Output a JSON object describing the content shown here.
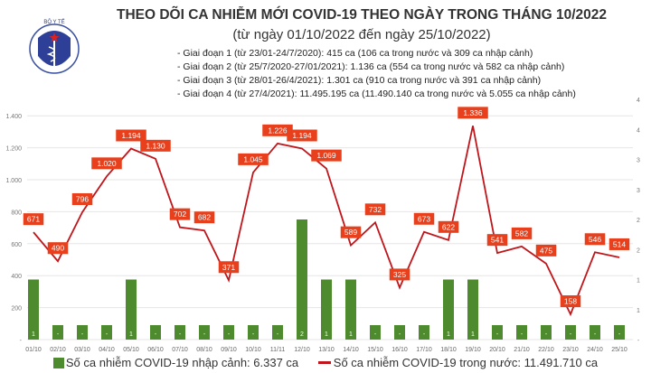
{
  "header": {
    "logo_text": "BỘ Y TẾ",
    "logo_subtext": "MINISTRY OF HEALTH",
    "title": "THEO DÕI CA NHIỄM MỚI COVID-19 THEO NGÀY TRONG THÁNG 10/2022",
    "subtitle": "(từ ngày 01/10/2022 đến ngày 25/10/2022)",
    "notes": [
      "- Giai đoạn 1 (từ 23/01-24/7/2020): 415 ca (106 ca trong nước và 309 ca nhập cảnh)",
      "- Giai đoạn 2 (từ 25/7/2020-27/01/2021): 1.136 ca (554 ca trong nước và 582 ca nhập cảnh)",
      "- Giai đoạn 3 (từ 28/01-26/4/2021): 1.301 ca (910 ca trong nước và 391 ca nhập cảnh)",
      "- Giai đoạn 4 (từ 27/4/2021): 11.495.195 ca (11.490.140 ca trong nước và 5.055 ca nhập cảnh)"
    ]
  },
  "chart_data": {
    "type": "bar+line",
    "categories": [
      "01/10",
      "02/10",
      "03/10",
      "04/10",
      "05/10",
      "06/10",
      "07/10",
      "08/10",
      "09/10",
      "10/10",
      "11/11",
      "12/10",
      "13/10",
      "14/10",
      "15/10",
      "16/10",
      "17/10",
      "18/10",
      "19/10",
      "20/10",
      "21/10",
      "22/10",
      "23/10",
      "24/10",
      "25/10"
    ],
    "series": [
      {
        "name": "Số ca nhiễm COVID-19 nhập cảnh: 6.337 ca",
        "type": "bar",
        "axis": "right",
        "color": "#4e8a2e",
        "values": [
          1,
          0,
          0,
          0,
          1,
          0,
          0,
          0,
          0,
          0,
          0,
          2,
          1,
          1,
          0,
          0,
          0,
          1,
          1,
          0,
          0,
          0,
          0,
          0,
          0
        ]
      },
      {
        "name": "Số ca nhiễm COVID-19 trong nước: 11.491.710 ca",
        "type": "line",
        "axis": "left",
        "color": "#c0161b",
        "values": [
          671,
          490,
          796,
          1020,
          1194,
          1130,
          702,
          682,
          371,
          1045,
          1226,
          1194,
          1069,
          589,
          732,
          325,
          673,
          622,
          1336,
          541,
          582,
          475,
          158,
          546,
          514
        ]
      }
    ],
    "left_axis": {
      "ylim": [
        0,
        1400
      ],
      "ticks": [
        "-",
        "200",
        "400",
        "600",
        "800",
        "1.000",
        "1.200",
        "1.400"
      ]
    },
    "right_axis": {
      "ylim": [
        0,
        4
      ],
      "ticks": [
        "-",
        "1",
        "1",
        "2",
        "2",
        "3",
        "3",
        "4",
        "4"
      ]
    },
    "zero_bar_label": "-",
    "label_color": "#e8401c",
    "grid": true,
    "legend": "bottom"
  }
}
